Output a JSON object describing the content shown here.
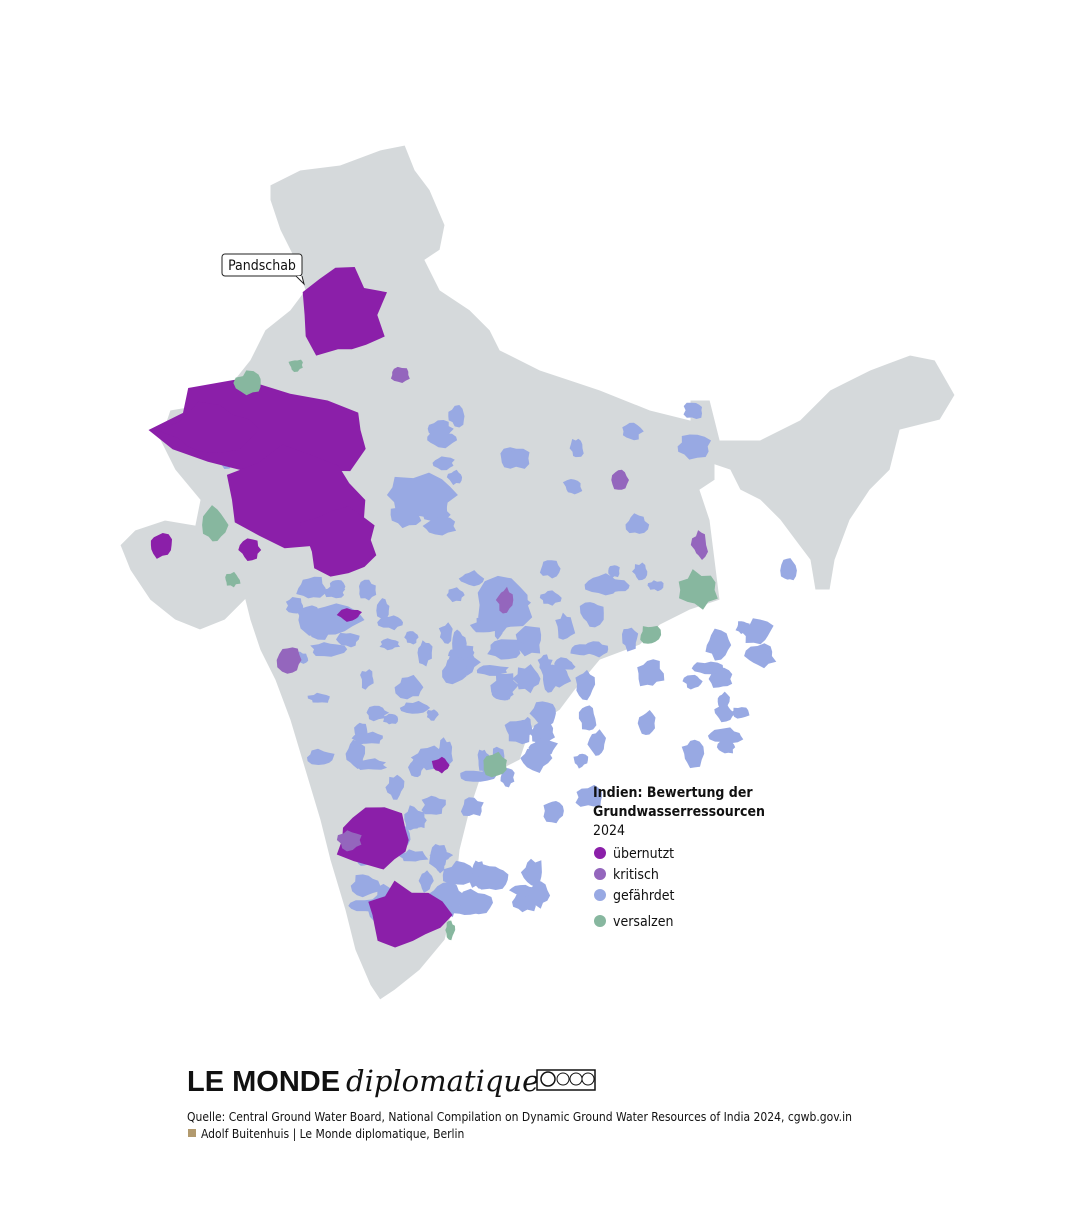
{
  "map": {
    "label": "Pandschab",
    "legend": {
      "title_lines": [
        "Indien: Bewertung der",
        "Grundwasserressourcen"
      ],
      "year": "2024",
      "items": [
        {
          "label": "übernutzt",
          "color": "#8b1fa9"
        },
        {
          "label": "kritisch",
          "color": "#9466bd"
        },
        {
          "label": "gefährdet",
          "color": "#98a9e3"
        },
        {
          "label": "versalzen",
          "color": "#87b79f"
        }
      ]
    }
  },
  "footer": {
    "brand": "LE MONDE",
    "brand_sub": "diplomatique",
    "source": "Quelle: Central Ground Water Board, National Compilation on Dynamic Ground Water Resources of India 2024, cgwb.gov.in",
    "credit": "Adolf Buitenhuis | Le Monde diplomatique, Berlin"
  }
}
